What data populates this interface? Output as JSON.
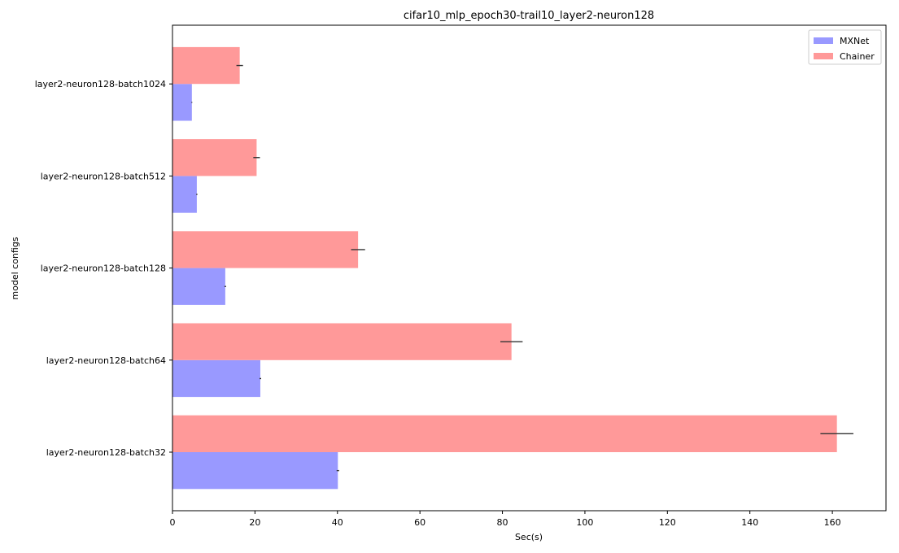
{
  "chart_data": {
    "type": "bar",
    "orientation": "horizontal",
    "title": "cifar10_mlp_epoch30-trail10_layer2-neuron128",
    "xlabel": "Sec(s)",
    "ylabel": "model configs",
    "xlim": [
      0,
      173
    ],
    "xticks": [
      0,
      20,
      40,
      60,
      80,
      100,
      120,
      140,
      160
    ],
    "categories": [
      "layer2-neuron128-batch32",
      "layer2-neuron128-batch64",
      "layer2-neuron128-batch128",
      "layer2-neuron128-batch512",
      "layer2-neuron128-batch1024"
    ],
    "series": [
      {
        "name": "MXNet",
        "color": "#9999ff",
        "values": [
          40.1,
          21.3,
          12.8,
          5.9,
          4.7
        ],
        "errors": [
          0.3,
          0.2,
          0.2,
          0.15,
          0.1
        ]
      },
      {
        "name": "Chainer",
        "color": "#ff9999",
        "values": [
          161.1,
          82.2,
          45.0,
          20.4,
          16.3
        ],
        "errors": [
          4.0,
          2.7,
          1.7,
          0.8,
          0.8
        ]
      }
    ],
    "legend": "top-right",
    "grid": false
  }
}
